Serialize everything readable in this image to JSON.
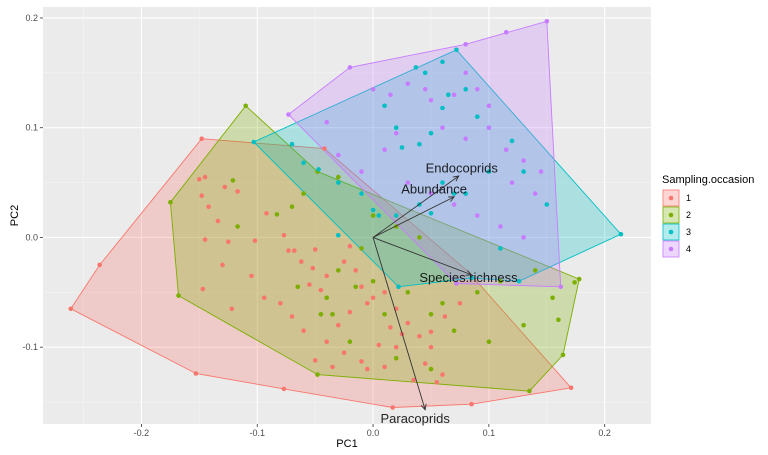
{
  "chart_data": {
    "type": "scatter",
    "xlabel": "PC1",
    "ylabel": "PC2",
    "xlim": [
      -0.285,
      0.24
    ],
    "ylim": [
      -0.17,
      0.21
    ],
    "x_ticks": [
      -0.2,
      -0.1,
      0.0,
      0.1,
      0.2
    ],
    "y_ticks": [
      -0.1,
      0.0,
      0.1,
      0.2
    ],
    "x_tick_labels": [
      "-0.2",
      "-0.1",
      "0.0",
      "0.1",
      "0.2"
    ],
    "y_tick_labels": [
      "-0.1",
      "0.0",
      "0.1",
      "0.2"
    ],
    "grid": true,
    "legend": {
      "title": "Sampling.occasion",
      "placement": "right"
    },
    "series": [
      {
        "name": "1",
        "color": "#F8766D",
        "hull": [
          [
            -0.261,
            -0.065
          ],
          [
            -0.236,
            -0.025
          ],
          [
            -0.148,
            0.09
          ],
          [
            -0.042,
            0.081
          ],
          [
            0.082,
            -0.031
          ],
          [
            0.171,
            -0.137
          ],
          [
            0.085,
            -0.152
          ],
          [
            0.017,
            -0.155
          ],
          [
            -0.077,
            -0.138
          ],
          [
            -0.153,
            -0.124
          ]
        ],
        "points": [
          [
            -0.261,
            -0.065
          ],
          [
            -0.236,
            -0.025
          ],
          [
            -0.148,
            0.09
          ],
          [
            -0.042,
            0.081
          ],
          [
            0.171,
            -0.137
          ],
          [
            0.085,
            -0.152
          ],
          [
            0.017,
            -0.155
          ],
          [
            -0.077,
            -0.138
          ],
          [
            -0.153,
            -0.124
          ],
          [
            -0.145,
            0.055
          ],
          [
            -0.15,
            0.053
          ],
          [
            -0.148,
            0.038
          ],
          [
            -0.142,
            0.028
          ],
          [
            -0.134,
            0.015
          ],
          [
            -0.128,
            0.046
          ],
          [
            -0.117,
            0.042
          ],
          [
            -0.145,
            -0.002
          ],
          [
            -0.125,
            -0.004
          ],
          [
            -0.102,
            -0.003
          ],
          [
            -0.092,
            0.022
          ],
          [
            -0.077,
            0.002
          ],
          [
            -0.073,
            -0.012
          ],
          [
            -0.068,
            -0.012
          ],
          [
            -0.062,
            -0.022
          ],
          [
            -0.052,
            -0.028
          ],
          [
            -0.05,
            -0.011
          ],
          [
            -0.055,
            -0.043
          ],
          [
            -0.045,
            -0.048
          ],
          [
            -0.04,
            -0.035
          ],
          [
            -0.025,
            -0.022
          ],
          [
            -0.02,
            -0.008
          ],
          [
            -0.015,
            -0.03
          ],
          [
            -0.01,
            -0.045
          ],
          [
            -0.005,
            -0.06
          ],
          [
            0.0,
            -0.055
          ],
          [
            0.01,
            -0.05
          ],
          [
            0.02,
            -0.065
          ],
          [
            0.03,
            -0.078
          ],
          [
            0.04,
            -0.09
          ],
          [
            0.05,
            -0.1
          ],
          [
            0.045,
            -0.115
          ],
          [
            0.035,
            -0.13
          ],
          [
            0.055,
            -0.132
          ],
          [
            0.06,
            -0.125
          ],
          [
            -0.02,
            -0.068
          ],
          [
            -0.03,
            -0.08
          ],
          [
            -0.04,
            -0.095
          ],
          [
            -0.05,
            -0.112
          ],
          [
            -0.06,
            -0.085
          ],
          [
            -0.07,
            -0.072
          ],
          [
            -0.08,
            -0.06
          ],
          [
            -0.094,
            -0.055
          ],
          [
            -0.105,
            -0.035
          ],
          [
            -0.13,
            -0.025
          ],
          [
            -0.122,
            -0.065
          ],
          [
            -0.147,
            -0.047
          ],
          [
            -0.01,
            -0.113
          ],
          [
            -0.005,
            -0.12
          ],
          [
            0.01,
            -0.118
          ],
          [
            0.02,
            -0.1
          ],
          [
            0.025,
            -0.088
          ],
          [
            0.015,
            -0.082
          ],
          [
            0.005,
            -0.098
          ],
          [
            -0.025,
            -0.105
          ],
          [
            -0.035,
            -0.118
          ],
          [
            0.05,
            -0.086
          ],
          [
            0.062,
            -0.072
          ],
          [
            0.075,
            -0.06
          ]
        ]
      },
      {
        "name": "2",
        "color": "#7CAE00",
        "hull": [
          [
            -0.11,
            0.12
          ],
          [
            -0.048,
            0.06
          ],
          [
            0.178,
            -0.038
          ],
          [
            0.164,
            -0.107
          ],
          [
            0.135,
            -0.14
          ],
          [
            -0.048,
            -0.125
          ],
          [
            -0.168,
            -0.053
          ],
          [
            -0.175,
            0.032
          ]
        ],
        "points": [
          [
            -0.11,
            0.12
          ],
          [
            -0.048,
            0.06
          ],
          [
            0.178,
            -0.038
          ],
          [
            0.174,
            -0.041
          ],
          [
            0.164,
            -0.107
          ],
          [
            0.135,
            -0.14
          ],
          [
            -0.048,
            -0.125
          ],
          [
            -0.168,
            -0.053
          ],
          [
            -0.175,
            0.032
          ],
          [
            -0.121,
            0.052
          ],
          [
            -0.117,
            0.01
          ],
          [
            -0.083,
            0.021
          ],
          [
            -0.07,
            0.028
          ],
          [
            -0.06,
            0.04
          ],
          [
            -0.03,
            0.055
          ],
          [
            0.0,
            0.02
          ],
          [
            0.02,
            0.01
          ],
          [
            0.04,
            0.0
          ],
          [
            -0.01,
            -0.01
          ],
          [
            -0.03,
            -0.03
          ],
          [
            -0.015,
            -0.045
          ],
          [
            0.0,
            -0.04
          ],
          [
            0.01,
            -0.07
          ],
          [
            0.03,
            -0.05
          ],
          [
            0.06,
            -0.06
          ],
          [
            0.09,
            -0.05
          ],
          [
            0.11,
            -0.04
          ],
          [
            0.14,
            -0.03
          ],
          [
            0.155,
            -0.055
          ],
          [
            0.13,
            -0.08
          ],
          [
            0.1,
            -0.095
          ],
          [
            0.07,
            -0.085
          ],
          [
            0.05,
            -0.07
          ],
          [
            -0.045,
            -0.07
          ],
          [
            -0.065,
            -0.045
          ],
          [
            -0.04,
            -0.055
          ],
          [
            -0.02,
            -0.095
          ],
          [
            0.02,
            -0.11
          ],
          [
            0.05,
            -0.12
          ],
          [
            0.16,
            -0.075
          ],
          [
            -0.035,
            -0.07
          ]
        ]
      },
      {
        "name": "3",
        "color": "#00BFC4",
        "hull": [
          [
            -0.103,
            0.087
          ],
          [
            0.072,
            0.171
          ],
          [
            0.214,
            0.003
          ],
          [
            0.126,
            -0.04
          ],
          [
            0.085,
            -0.037
          ],
          [
            0.022,
            -0.045
          ]
        ],
        "points": [
          [
            -0.103,
            0.087
          ],
          [
            0.072,
            0.171
          ],
          [
            0.214,
            0.003
          ],
          [
            0.126,
            -0.04
          ],
          [
            0.085,
            -0.037
          ],
          [
            0.022,
            -0.045
          ],
          [
            -0.07,
            0.085
          ],
          [
            -0.06,
            0.068
          ],
          [
            -0.047,
            0.062
          ],
          [
            -0.03,
            0.05
          ],
          [
            -0.01,
            0.04
          ],
          [
            0.01,
            0.12
          ],
          [
            0.02,
            0.1
          ],
          [
            0.025,
            0.082
          ],
          [
            0.04,
            0.085
          ],
          [
            0.05,
            0.095
          ],
          [
            0.06,
            0.118
          ],
          [
            0.065,
            0.13
          ],
          [
            0.08,
            0.135
          ],
          [
            0.09,
            0.11
          ],
          [
            0.1,
            0.1
          ],
          [
            0.12,
            0.088
          ],
          [
            0.1,
            0.06
          ],
          [
            0.08,
            0.04
          ],
          [
            0.06,
            0.05
          ],
          [
            0.05,
            0.022
          ],
          [
            0.04,
            0.03
          ],
          [
            0.02,
            0.02
          ],
          [
            0.005,
            0.02
          ],
          [
            0.0,
            0.025
          ],
          [
            0.13,
            0.06
          ],
          [
            0.15,
            0.03
          ],
          [
            0.11,
            -0.01
          ],
          [
            0.07,
            0.04
          ],
          [
            0.037,
            0.155
          ],
          [
            0.045,
            0.15
          ],
          [
            0.06,
            0.16
          ],
          [
            -0.03,
            0.002
          ]
        ]
      },
      {
        "name": "4",
        "color": "#C77CFF",
        "hull": [
          [
            -0.073,
            0.112
          ],
          [
            -0.02,
            0.155
          ],
          [
            0.08,
            0.176
          ],
          [
            0.15,
            0.197
          ],
          [
            0.162,
            -0.045
          ],
          [
            0.072,
            -0.042
          ]
        ],
        "points": [
          [
            -0.073,
            0.112
          ],
          [
            -0.02,
            0.155
          ],
          [
            0.08,
            0.176
          ],
          [
            0.15,
            0.197
          ],
          [
            0.162,
            -0.045
          ],
          [
            0.072,
            -0.042
          ],
          [
            0.115,
            0.187
          ],
          [
            -0.04,
            0.105
          ],
          [
            -0.03,
            0.075
          ],
          [
            0.0,
            0.135
          ],
          [
            0.015,
            0.13
          ],
          [
            0.03,
            0.14
          ],
          [
            0.045,
            0.135
          ],
          [
            0.05,
            0.125
          ],
          [
            0.07,
            0.13
          ],
          [
            0.08,
            0.15
          ],
          [
            0.09,
            0.135
          ],
          [
            0.1,
            0.12
          ],
          [
            0.1,
            0.1
          ],
          [
            0.115,
            0.08
          ],
          [
            0.13,
            0.07
          ],
          [
            0.145,
            0.06
          ],
          [
            0.02,
            0.095
          ],
          [
            0.01,
            0.08
          ],
          [
            0.03,
            0.05
          ],
          [
            0.05,
            0.04
          ],
          [
            0.07,
            0.03
          ],
          [
            0.09,
            0.02
          ],
          [
            0.11,
            0.01
          ],
          [
            0.13,
            0.0
          ],
          [
            0.06,
            0.1
          ],
          [
            0.08,
            0.09
          ],
          [
            0.12,
            0.05
          ],
          [
            0.14,
            0.04
          ],
          [
            -0.01,
            0.06
          ]
        ]
      }
    ],
    "vectors": [
      {
        "label": "Endocoprids",
        "x": 0.074,
        "y": 0.056
      },
      {
        "label": "Abundance",
        "x": 0.07,
        "y": 0.037
      },
      {
        "label": "Species.richness",
        "x": 0.085,
        "y": -0.034
      },
      {
        "label": "Paracoprids",
        "x": 0.045,
        "y": -0.157
      }
    ]
  }
}
